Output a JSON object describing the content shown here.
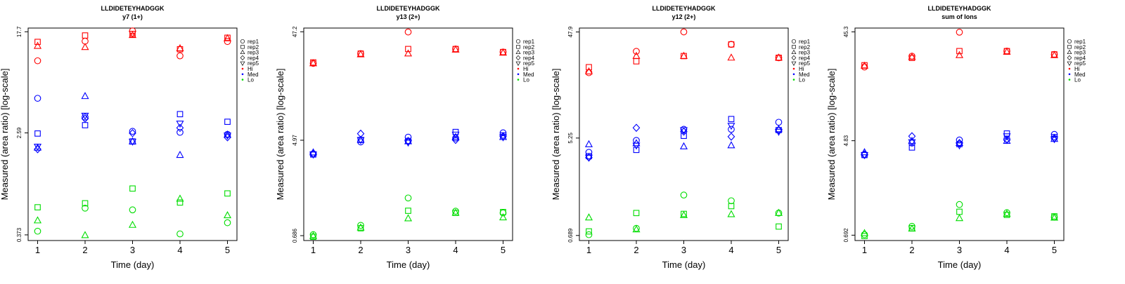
{
  "chart_data": [
    {
      "type": "scatter",
      "title": "LLDIDETEYHADGGK",
      "subtitle": "y7 (1+)",
      "xlabel": "Time (day)",
      "ylabel": "Measured (area ratio) [log-scale]",
      "log_y": true,
      "xticks": [
        "1",
        "2",
        "3",
        "4",
        "5"
      ],
      "yticks": [
        {
          "value": 0.373,
          "label": "0.373"
        },
        {
          "value": 2.59,
          "label": "2.59"
        },
        {
          "value": 17.7,
          "label": "17.7"
        }
      ],
      "xlim": [
        0.8,
        5.2
      ],
      "ylim": [
        0.335,
        19.0
      ],
      "legend_position": "right",
      "legend": [
        {
          "label": "rep1",
          "marker": "circle"
        },
        {
          "label": "rep2",
          "marker": "square"
        },
        {
          "label": "rep3",
          "marker": "triangle-up"
        },
        {
          "label": "rep4",
          "marker": "diamond"
        },
        {
          "label": "rep5",
          "marker": "triangle-down"
        },
        {
          "label": "Hi",
          "color": "#ff0000",
          "marker": "dot"
        },
        {
          "label": "Med",
          "color": "#0000ff",
          "marker": "dot"
        },
        {
          "label": "Lo",
          "color": "#00dd00",
          "marker": "dot"
        }
      ],
      "series": [
        {
          "group": "Hi",
          "rep": "rep1",
          "x": [
            1,
            2,
            3,
            4,
            5
          ],
          "y": [
            10.2,
            14.8,
            18.0,
            11.2,
            14.7
          ]
        },
        {
          "group": "Hi",
          "rep": "rep2",
          "x": [
            1,
            2,
            3,
            4,
            5
          ],
          "y": [
            14.6,
            16.5,
            17.0,
            12.7,
            15.8
          ]
        },
        {
          "group": "Hi",
          "rep": "rep3",
          "x": [
            1,
            2,
            3,
            4,
            5
          ],
          "y": [
            13.5,
            13.2,
            16.6,
            12.9,
            15.6
          ]
        },
        {
          "group": "Hi",
          "rep": "rep5",
          "x": [
            3
          ],
          "y": [
            17.1
          ]
        },
        {
          "group": "Med",
          "rep": "rep1",
          "x": [
            1,
            2,
            3,
            4,
            5
          ],
          "y": [
            5.0,
            3.5,
            2.67,
            2.62,
            2.52
          ]
        },
        {
          "group": "Med",
          "rep": "rep2",
          "x": [
            1,
            2,
            3,
            4,
            5
          ],
          "y": [
            2.56,
            3.0,
            2.2,
            3.7,
            3.2
          ]
        },
        {
          "group": "Med",
          "rep": "rep3",
          "x": [
            1,
            2,
            3,
            4,
            5
          ],
          "y": [
            1.95,
            5.2,
            2.2,
            1.7,
            2.5
          ]
        },
        {
          "group": "Med",
          "rep": "rep4",
          "x": [
            1,
            2,
            3,
            4,
            5
          ],
          "y": [
            1.9,
            3.4,
            2.58,
            2.85,
            2.38
          ]
        },
        {
          "group": "Med",
          "rep": "rep5",
          "x": [
            1,
            2,
            3,
            4,
            5
          ],
          "y": [
            2.0,
            3.6,
            2.2,
            3.1,
            2.47
          ]
        },
        {
          "group": "Lo",
          "rep": "rep1",
          "x": [
            1,
            2,
            3,
            4,
            5
          ],
          "y": [
            0.4,
            0.62,
            0.6,
            0.38,
            0.47
          ]
        },
        {
          "group": "Lo",
          "rep": "rep2",
          "x": [
            1,
            2,
            3,
            4,
            5
          ],
          "y": [
            0.63,
            0.68,
            0.9,
            0.69,
            0.82
          ]
        },
        {
          "group": "Lo",
          "rep": "rep3",
          "x": [
            1,
            2,
            3,
            4,
            5
          ],
          "y": [
            0.49,
            0.37,
            0.45,
            0.74,
            0.54
          ]
        }
      ]
    },
    {
      "type": "scatter",
      "title": "LLDIDETEYHADGGK",
      "subtitle": "y13 (2+)",
      "xlabel": "Time (day)",
      "ylabel": "Measured (area ratio) [log-scale]",
      "log_y": true,
      "xticks": [
        "1",
        "2",
        "3",
        "4",
        "5"
      ],
      "yticks": [
        {
          "value": 0.686,
          "label": "0.686"
        },
        {
          "value": 4.97,
          "label": "4.97"
        },
        {
          "value": 47.2,
          "label": "47.2"
        }
      ],
      "xlim": [
        0.8,
        5.2
      ],
      "ylim": [
        0.62,
        51.0
      ],
      "legend_position": "right",
      "legend": [
        {
          "label": "rep1",
          "marker": "circle"
        },
        {
          "label": "rep2",
          "marker": "square"
        },
        {
          "label": "rep3",
          "marker": "triangle-up"
        },
        {
          "label": "rep4",
          "marker": "diamond"
        },
        {
          "label": "rep5",
          "marker": "triangle-down"
        },
        {
          "label": "Hi",
          "color": "#ff0000",
          "marker": "dot"
        },
        {
          "label": "Med",
          "color": "#0000ff",
          "marker": "dot"
        },
        {
          "label": "Lo",
          "color": "#00dd00",
          "marker": "dot"
        }
      ],
      "series": [
        {
          "group": "Hi",
          "rep": "rep1",
          "x": [
            1,
            2,
            3,
            4,
            5
          ],
          "y": [
            24.5,
            30.0,
            47.0,
            33.0,
            31.0
          ]
        },
        {
          "group": "Hi",
          "rep": "rep2",
          "x": [
            1,
            2,
            3,
            4,
            5
          ],
          "y": [
            25.0,
            30.0,
            33.0,
            33.0,
            31.0
          ]
        },
        {
          "group": "Hi",
          "rep": "rep3",
          "x": [
            1,
            2,
            3,
            4,
            5
          ],
          "y": [
            24.5,
            29.5,
            30.0,
            32.5,
            30.5
          ]
        },
        {
          "group": "Med",
          "rep": "rep1",
          "x": [
            1,
            2,
            3,
            4,
            5
          ],
          "y": [
            3.75,
            4.8,
            5.3,
            5.2,
            5.8
          ]
        },
        {
          "group": "Med",
          "rep": "rep2",
          "x": [
            1,
            2,
            3,
            4,
            5
          ],
          "y": [
            3.7,
            5.0,
            4.9,
            5.9,
            5.5
          ]
        },
        {
          "group": "Med",
          "rep": "rep3",
          "x": [
            1,
            2,
            3,
            4,
            5
          ],
          "y": [
            3.85,
            5.0,
            4.85,
            5.3,
            5.3
          ]
        },
        {
          "group": "Med",
          "rep": "rep4",
          "x": [
            1,
            2,
            3,
            4,
            5
          ],
          "y": [
            3.75,
            5.7,
            4.9,
            5.0,
            5.4
          ]
        },
        {
          "group": "Med",
          "rep": "rep5",
          "x": [
            1,
            2,
            3,
            4,
            5
          ],
          "y": [
            3.7,
            5.0,
            4.75,
            5.6,
            5.3
          ]
        },
        {
          "group": "Lo",
          "rep": "rep1",
          "x": [
            1,
            2,
            3,
            4,
            5
          ],
          "y": [
            0.7,
            0.85,
            1.5,
            1.14,
            1.1
          ]
        },
        {
          "group": "Lo",
          "rep": "rep2",
          "x": [
            1,
            2,
            3,
            4,
            5
          ],
          "y": [
            0.67,
            0.8,
            1.15,
            1.1,
            1.12
          ]
        },
        {
          "group": "Lo",
          "rep": "rep3",
          "x": [
            1,
            2,
            3,
            4,
            5
          ],
          "y": [
            0.68,
            0.81,
            0.98,
            1.1,
            1.0
          ]
        }
      ]
    },
    {
      "type": "scatter",
      "title": "LLDIDETEYHADGGK",
      "subtitle": "y12 (2+)",
      "xlabel": "Time (day)",
      "ylabel": "Measured (area ratio) [log-scale]",
      "log_y": true,
      "xticks": [
        "1",
        "2",
        "3",
        "4",
        "5"
      ],
      "yticks": [
        {
          "value": 0.689,
          "label": "0.689"
        },
        {
          "value": 5.25,
          "label": "5.25"
        },
        {
          "value": 47.9,
          "label": "47.9"
        }
      ],
      "xlim": [
        0.8,
        5.2
      ],
      "ylim": [
        0.62,
        52.0
      ],
      "legend_position": "right",
      "legend": [
        {
          "label": "rep1",
          "marker": "circle"
        },
        {
          "label": "rep2",
          "marker": "square"
        },
        {
          "label": "rep3",
          "marker": "triangle-up"
        },
        {
          "label": "rep4",
          "marker": "diamond"
        },
        {
          "label": "rep5",
          "marker": "triangle-down"
        },
        {
          "label": "Hi",
          "color": "#ff0000",
          "marker": "dot"
        },
        {
          "label": "Med",
          "color": "#0000ff",
          "marker": "dot"
        },
        {
          "label": "Lo",
          "color": "#00dd00",
          "marker": "dot"
        }
      ],
      "series": [
        {
          "group": "Hi",
          "rep": "rep1",
          "x": [
            1,
            2,
            3,
            4,
            5
          ],
          "y": [
            20.5,
            32.0,
            48.0,
            37.0,
            28.0
          ]
        },
        {
          "group": "Hi",
          "rep": "rep2",
          "x": [
            1,
            2,
            3,
            4,
            5
          ],
          "y": [
            23.0,
            26.0,
            29.0,
            37.0,
            28.0
          ]
        },
        {
          "group": "Hi",
          "rep": "rep3",
          "x": [
            1,
            2,
            3,
            4,
            5
          ],
          "y": [
            21.0,
            29.0,
            29.0,
            28.0,
            28.0
          ]
        },
        {
          "group": "Med",
          "rep": "rep1",
          "x": [
            1,
            2,
            3,
            4,
            5
          ],
          "y": [
            3.9,
            5.0,
            6.3,
            6.3,
            7.3
          ]
        },
        {
          "group": "Med",
          "rep": "rep2",
          "x": [
            1,
            2,
            3,
            4,
            5
          ],
          "y": [
            3.6,
            4.1,
            5.5,
            7.8,
            6.2
          ]
        },
        {
          "group": "Med",
          "rep": "rep3",
          "x": [
            1,
            2,
            3,
            4,
            5
          ],
          "y": [
            4.6,
            4.7,
            4.4,
            4.5,
            6.3
          ]
        },
        {
          "group": "Med",
          "rep": "rep4",
          "x": [
            1,
            2,
            3,
            4,
            5
          ],
          "y": [
            3.5,
            6.5,
            6.0,
            5.4,
            6.2
          ]
        },
        {
          "group": "Med",
          "rep": "rep5",
          "x": [
            1,
            2,
            3,
            4,
            5
          ],
          "y": [
            3.5,
            4.5,
            6.2,
            6.8,
            6.0
          ]
        },
        {
          "group": "Lo",
          "rep": "rep1",
          "x": [
            1,
            2,
            3,
            4,
            5
          ],
          "y": [
            0.7,
            0.8,
            1.6,
            1.42,
            1.1
          ]
        },
        {
          "group": "Lo",
          "rep": "rep2",
          "x": [
            1,
            2,
            3,
            4,
            5
          ],
          "y": [
            0.75,
            1.1,
            1.08,
            1.27,
            0.83
          ]
        },
        {
          "group": "Lo",
          "rep": "rep3",
          "x": [
            1,
            2,
            3,
            4,
            5
          ],
          "y": [
            1.0,
            0.78,
            1.05,
            1.07,
            1.1
          ]
        }
      ]
    },
    {
      "type": "scatter",
      "title": "LLDIDETEYHADGGK",
      "subtitle": "sum of Ions",
      "xlabel": "Time (day)",
      "ylabel": "Measured (area ratio) [log-scale]",
      "log_y": true,
      "xticks": [
        "1",
        "2",
        "3",
        "4",
        "5"
      ],
      "yticks": [
        {
          "value": 0.692,
          "label": "0.692"
        },
        {
          "value": 4.83,
          "label": "4.83"
        },
        {
          "value": 45.3,
          "label": "45.3"
        }
      ],
      "xlim": [
        0.8,
        5.2
      ],
      "ylim": [
        0.62,
        49.0
      ],
      "legend_position": "right",
      "legend": [
        {
          "label": "rep1",
          "marker": "circle"
        },
        {
          "label": "rep2",
          "marker": "square"
        },
        {
          "label": "rep3",
          "marker": "triangle-up"
        },
        {
          "label": "rep4",
          "marker": "diamond"
        },
        {
          "label": "rep5",
          "marker": "triangle-down"
        },
        {
          "label": "Hi",
          "color": "#ff0000",
          "marker": "dot"
        },
        {
          "label": "Med",
          "color": "#0000ff",
          "marker": "dot"
        },
        {
          "label": "Lo",
          "color": "#00dd00",
          "marker": "dot"
        }
      ],
      "series": [
        {
          "group": "Hi",
          "rep": "rep1",
          "x": [
            1,
            2,
            3,
            4,
            5
          ],
          "y": [
            22.0,
            27.5,
            45.0,
            30.5,
            28.5
          ]
        },
        {
          "group": "Hi",
          "rep": "rep2",
          "x": [
            1,
            2,
            3,
            4,
            5
          ],
          "y": [
            22.8,
            26.5,
            30.5,
            30.5,
            28.5
          ]
        },
        {
          "group": "Hi",
          "rep": "rep3",
          "x": [
            1,
            2,
            3,
            4,
            5
          ],
          "y": [
            22.5,
            27.0,
            28.0,
            30.0,
            28.0
          ]
        },
        {
          "group": "Med",
          "rep": "rep1",
          "x": [
            1,
            2,
            3,
            4,
            5
          ],
          "y": [
            3.6,
            4.6,
            4.9,
            5.0,
            5.5
          ]
        },
        {
          "group": "Med",
          "rep": "rep2",
          "x": [
            1,
            2,
            3,
            4,
            5
          ],
          "y": [
            3.6,
            4.2,
            4.5,
            5.6,
            5.2
          ]
        },
        {
          "group": "Med",
          "rep": "rep3",
          "x": [
            1,
            2,
            3,
            4,
            5
          ],
          "y": [
            3.8,
            4.8,
            4.6,
            4.8,
            5.0
          ]
        },
        {
          "group": "Med",
          "rep": "rep4",
          "x": [
            1,
            2,
            3,
            4,
            5
          ],
          "y": [
            3.65,
            5.3,
            4.6,
            4.9,
            5.1
          ]
        },
        {
          "group": "Med",
          "rep": "rep5",
          "x": [
            1,
            2,
            3,
            4,
            5
          ],
          "y": [
            3.6,
            4.7,
            4.4,
            5.3,
            5.0
          ]
        },
        {
          "group": "Lo",
          "rep": "rep1",
          "x": [
            1,
            2,
            3,
            4,
            5
          ],
          "y": [
            0.7,
            0.83,
            1.3,
            1.1,
            1.0
          ]
        },
        {
          "group": "Lo",
          "rep": "rep2",
          "x": [
            1,
            2,
            3,
            4,
            5
          ],
          "y": [
            0.68,
            0.8,
            1.12,
            1.05,
            1.02
          ]
        },
        {
          "group": "Lo",
          "rep": "rep3",
          "x": [
            1,
            2,
            3,
            4,
            5
          ],
          "y": [
            0.72,
            0.79,
            0.98,
            1.07,
            0.99
          ]
        }
      ]
    }
  ]
}
